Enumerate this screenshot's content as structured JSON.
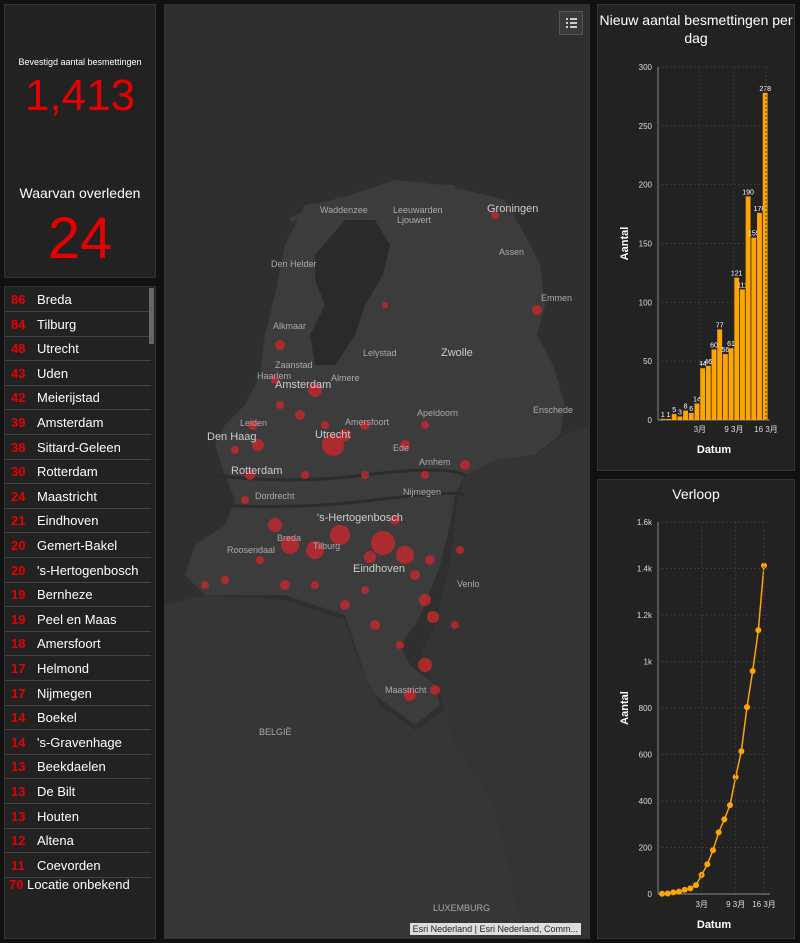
{
  "stats": {
    "confirmed_label": "Bevestigd aantal besmettingen",
    "confirmed_value": "1,413",
    "deaths_label": "Waarvan overleden",
    "deaths_value": "24"
  },
  "list": {
    "items": [
      {
        "count": "86",
        "name": "Breda"
      },
      {
        "count": "84",
        "name": "Tilburg"
      },
      {
        "count": "48",
        "name": "Utrecht"
      },
      {
        "count": "43",
        "name": "Uden"
      },
      {
        "count": "42",
        "name": "Meierijstad"
      },
      {
        "count": "39",
        "name": "Amsterdam"
      },
      {
        "count": "38",
        "name": "Sittard-Geleen"
      },
      {
        "count": "30",
        "name": "Rotterdam"
      },
      {
        "count": "24",
        "name": "Maastricht"
      },
      {
        "count": "21",
        "name": "Eindhoven"
      },
      {
        "count": "20",
        "name": "Gemert-Bakel"
      },
      {
        "count": "20",
        "name": "'s-Hertogenbosch"
      },
      {
        "count": "19",
        "name": "Bernheze"
      },
      {
        "count": "19",
        "name": "Peel en Maas"
      },
      {
        "count": "18",
        "name": "Amersfoort"
      },
      {
        "count": "17",
        "name": "Helmond"
      },
      {
        "count": "17",
        "name": "Nijmegen"
      },
      {
        "count": "14",
        "name": "Boekel"
      },
      {
        "count": "14",
        "name": "'s-Gravenhage"
      },
      {
        "count": "13",
        "name": "Beekdaelen"
      },
      {
        "count": "13",
        "name": "De Bilt"
      },
      {
        "count": "13",
        "name": "Houten"
      },
      {
        "count": "12",
        "name": "Altena"
      },
      {
        "count": "11",
        "name": "Coevorden"
      }
    ],
    "unknown": {
      "count": "70",
      "name": "Locatie onbekend"
    }
  },
  "map": {
    "attribution": "Esri Nederland | Esri Nederland, Comm...",
    "labels": [
      {
        "text": "Waddenzee"
      },
      {
        "text": "Leeuwarden"
      },
      {
        "text": "Ljouwert"
      },
      {
        "text": "Groningen"
      },
      {
        "text": "Assen"
      },
      {
        "text": "Den Helder"
      },
      {
        "text": "Emmen"
      },
      {
        "text": "Alkmaar"
      },
      {
        "text": "Lelystad"
      },
      {
        "text": "Zwolle"
      },
      {
        "text": "Zaanstad"
      },
      {
        "text": "Haarlem"
      },
      {
        "text": "Amsterdam"
      },
      {
        "text": "Almere"
      },
      {
        "text": "Apeldoorn"
      },
      {
        "text": "Enschede"
      },
      {
        "text": "Leiden"
      },
      {
        "text": "Amersfoort"
      },
      {
        "text": "Den Haag"
      },
      {
        "text": "Utrecht"
      },
      {
        "text": "Ede"
      },
      {
        "text": "Arnhem"
      },
      {
        "text": "Rotterdam"
      },
      {
        "text": "Nijmegen"
      },
      {
        "text": "Dordrecht"
      },
      {
        "text": "'s-Hertogenbosch"
      },
      {
        "text": "Breda"
      },
      {
        "text": "Tilburg"
      },
      {
        "text": "Roosendaal"
      },
      {
        "text": "Eindhoven"
      },
      {
        "text": "Venlo"
      },
      {
        "text": "Maastricht"
      },
      {
        "text": "BELGIË"
      },
      {
        "text": "LUXEMBURG"
      }
    ]
  },
  "bar_chart": {
    "title": "Nieuw aantal besmettingen per dag",
    "chart_data": {
      "type": "bar",
      "title": "Nieuw aantal besmettingen per dag",
      "xlabel": "Datum",
      "ylabel": "Aantal",
      "ylim": [
        0,
        300
      ],
      "yticks": [
        "0",
        "50",
        "100",
        "150",
        "200",
        "250",
        "300"
      ],
      "xticks": [
        "3月",
        "9 3月",
        "16 3月"
      ],
      "values": [
        1,
        1,
        5,
        3,
        8,
        6,
        14,
        44,
        46,
        60,
        77,
        56,
        61,
        121,
        111,
        190,
        155,
        176,
        278
      ],
      "labels": [
        "1",
        "1",
        "5",
        "3",
        "8",
        "6",
        "14",
        "44",
        "46",
        "60",
        "77",
        "56",
        "61",
        "121",
        "111",
        "190",
        "155",
        "176",
        "278"
      ],
      "color": "#ffa500"
    }
  },
  "line_chart": {
    "title": "Verloop",
    "chart_data": {
      "type": "line",
      "title": "Verloop",
      "xlabel": "Datum",
      "ylabel": "Aantal",
      "ylim": [
        0,
        1600
      ],
      "yticks": [
        "0",
        "200",
        "400",
        "600",
        "800",
        "1k",
        "1.2k",
        "1.4k",
        "1.6k"
      ],
      "xticks": [
        "3月",
        "9 3月",
        "16 3月"
      ],
      "values": [
        1,
        2,
        7,
        10,
        18,
        24,
        38,
        82,
        128,
        188,
        265,
        321,
        382,
        503,
        614,
        804,
        959,
        1135,
        1413
      ],
      "color": "#ffa500"
    }
  }
}
